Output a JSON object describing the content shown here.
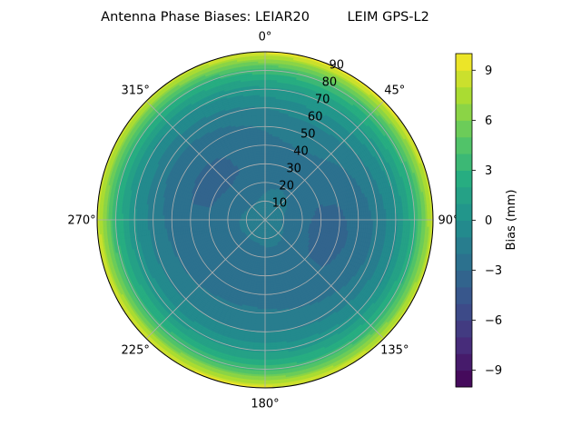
{
  "chart_data": {
    "type": "heatmap",
    "projection": "polar",
    "title": "Antenna Phase Biases: LEIAR20         LEIM GPS-L2",
    "theta_zero_location": "N",
    "theta_direction": "clockwise",
    "theta_tick_labels": [
      "0°",
      "45°",
      "90°",
      "135°",
      "180°",
      "225°",
      "270°",
      "315°"
    ],
    "theta_ticks_deg": [
      0,
      45,
      90,
      135,
      180,
      225,
      270,
      315
    ],
    "r_ticks": [
      10,
      20,
      30,
      40,
      50,
      60,
      70,
      80,
      90
    ],
    "r_tick_labels": [
      "10",
      "20",
      "30",
      "40",
      "50",
      "60",
      "70",
      "80",
      "90"
    ],
    "r_lim": [
      0,
      90
    ],
    "r_label_angle_deg": 22.5,
    "grid": true,
    "colormap": "viridis",
    "colorbar": {
      "label": "Bias (mm)",
      "vmin": -10,
      "vmax": 10,
      "levels": 20,
      "ticks": [
        -9,
        -6,
        -3,
        0,
        3,
        6,
        9
      ],
      "tick_labels": [
        "−9",
        "−6",
        "−3",
        "0",
        "3",
        "6",
        "9"
      ]
    },
    "bias_profile": {
      "zenith_deg": [
        0,
        10,
        20,
        30,
        40,
        50,
        60,
        70,
        80,
        85,
        90
      ],
      "bias_mm": [
        -1.5,
        -1.8,
        -2.5,
        -2.8,
        -2.7,
        -2.2,
        -1.3,
        0.3,
        3.2,
        6.0,
        9.0
      ]
    }
  }
}
